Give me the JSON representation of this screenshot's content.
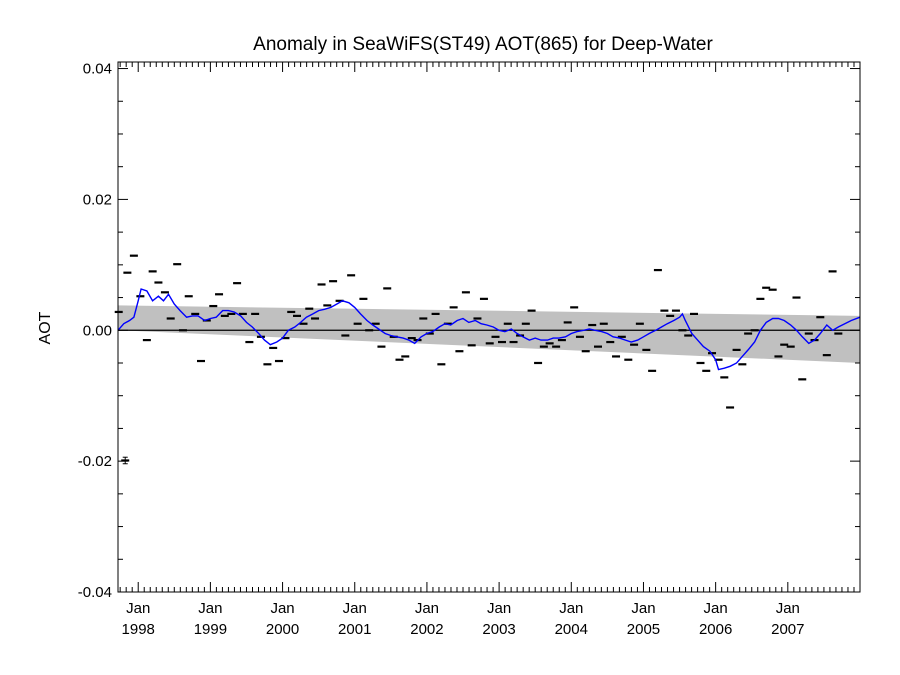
{
  "chart_data": {
    "type": "scatter",
    "title": "Anomaly in SeaWiFS(ST49) AOT(865) for Deep-Water",
    "ylabel": "AOT",
    "xlabel": "",
    "xlim": [
      1997.72,
      2008.0
    ],
    "ylim": [
      -0.04,
      0.041
    ],
    "y_ticks": [
      {
        "value": 0.04,
        "label": "0.04"
      },
      {
        "value": 0.02,
        "label": "0.02"
      },
      {
        "value": 0.0,
        "label": "0.00"
      },
      {
        "value": -0.02,
        "label": "-0.02"
      },
      {
        "value": -0.04,
        "label": "-0.04"
      }
    ],
    "x_ticks": [
      {
        "value": 1998.0,
        "month": "Jan",
        "year": "1998"
      },
      {
        "value": 1999.0,
        "month": "Jan",
        "year": "1999"
      },
      {
        "value": 2000.0,
        "month": "Jan",
        "year": "2000"
      },
      {
        "value": 2001.0,
        "month": "Jan",
        "year": "2001"
      },
      {
        "value": 2002.0,
        "month": "Jan",
        "year": "2002"
      },
      {
        "value": 2003.0,
        "month": "Jan",
        "year": "2003"
      },
      {
        "value": 2004.0,
        "month": "Jan",
        "year": "2004"
      },
      {
        "value": 2005.0,
        "month": "Jan",
        "year": "2005"
      },
      {
        "value": 2006.0,
        "month": "Jan",
        "year": "2006"
      },
      {
        "value": 2007.0,
        "month": "Jan",
        "year": "2007"
      }
    ],
    "zero_line": 0.0,
    "trend_band": {
      "upper": [
        [
          1997.72,
          0.0038
        ],
        [
          2008.0,
          0.0022
        ]
      ],
      "lower": [
        [
          1997.72,
          0.0
        ],
        [
          2008.0,
          -0.005
        ]
      ],
      "color": "#c0c0c0"
    },
    "error_bar_sample": {
      "x": 1997.82,
      "y": -0.0199,
      "err": 0.0005
    },
    "monthly_anomalies": {
      "color": "#000000",
      "points": [
        [
          1997.73,
          0.0028
        ],
        [
          1997.85,
          0.0088
        ],
        [
          1997.94,
          0.0114
        ],
        [
          1998.03,
          0.0052
        ],
        [
          1998.12,
          -0.0015
        ],
        [
          1998.2,
          0.009
        ],
        [
          1998.28,
          0.0073
        ],
        [
          1998.37,
          0.0058
        ],
        [
          1998.45,
          0.0018
        ],
        [
          1998.54,
          0.0101
        ],
        [
          1998.62,
          0.0
        ],
        [
          1998.7,
          0.0052
        ],
        [
          1998.79,
          0.0025
        ],
        [
          1998.87,
          -0.0047
        ],
        [
          1998.95,
          0.0015
        ],
        [
          1999.04,
          0.0037
        ],
        [
          1999.12,
          0.0055
        ],
        [
          1999.2,
          0.0022
        ],
        [
          1999.29,
          0.0025
        ],
        [
          1999.37,
          0.0072
        ],
        [
          1999.45,
          0.0025
        ],
        [
          1999.54,
          -0.0018
        ],
        [
          1999.62,
          0.0025
        ],
        [
          1999.7,
          -0.001
        ],
        [
          1999.79,
          -0.0052
        ],
        [
          1999.87,
          -0.0027
        ],
        [
          1999.95,
          -0.0047
        ],
        [
          2000.04,
          -0.0012
        ],
        [
          2000.12,
          0.0028
        ],
        [
          2000.2,
          0.0022
        ],
        [
          2000.29,
          0.001
        ],
        [
          2000.37,
          0.0033
        ],
        [
          2000.45,
          0.0018
        ],
        [
          2000.54,
          0.007
        ],
        [
          2000.62,
          0.0038
        ],
        [
          2000.7,
          0.0075
        ],
        [
          2000.79,
          0.0045
        ],
        [
          2000.87,
          -0.0008
        ],
        [
          2000.95,
          0.0084
        ],
        [
          2001.04,
          0.001
        ],
        [
          2001.12,
          0.0048
        ],
        [
          2001.2,
          0.0
        ],
        [
          2001.29,
          0.001
        ],
        [
          2001.37,
          -0.0025
        ],
        [
          2001.45,
          0.0064
        ],
        [
          2001.54,
          -0.001
        ],
        [
          2001.62,
          -0.0045
        ],
        [
          2001.7,
          -0.004
        ],
        [
          2001.79,
          -0.0012
        ],
        [
          2001.87,
          -0.0015
        ],
        [
          2001.95,
          0.0018
        ],
        [
          2002.04,
          -0.0005
        ],
        [
          2002.12,
          0.0025
        ],
        [
          2002.2,
          -0.0052
        ],
        [
          2002.29,
          0.001
        ],
        [
          2002.37,
          0.0035
        ],
        [
          2002.45,
          -0.0032
        ],
        [
          2002.54,
          0.0058
        ],
        [
          2002.62,
          -0.0023
        ],
        [
          2002.7,
          0.0018
        ],
        [
          2002.79,
          0.0048
        ],
        [
          2002.87,
          -0.002
        ],
        [
          2002.95,
          -0.001
        ],
        [
          2003.04,
          -0.0018
        ],
        [
          2003.12,
          0.001
        ],
        [
          2003.2,
          -0.0018
        ],
        [
          2003.29,
          -0.0008
        ],
        [
          2003.37,
          0.001
        ],
        [
          2003.45,
          0.003
        ],
        [
          2003.54,
          -0.005
        ],
        [
          2003.62,
          -0.0025
        ],
        [
          2003.7,
          -0.002
        ],
        [
          2003.79,
          -0.0025
        ],
        [
          2003.87,
          -0.0015
        ],
        [
          2003.95,
          0.0012
        ],
        [
          2004.04,
          0.0035
        ],
        [
          2004.12,
          -0.001
        ],
        [
          2004.2,
          -0.0032
        ],
        [
          2004.29,
          0.0008
        ],
        [
          2004.37,
          -0.0025
        ],
        [
          2004.45,
          0.001
        ],
        [
          2004.54,
          -0.0018
        ],
        [
          2004.62,
          -0.004
        ],
        [
          2004.7,
          -0.001
        ],
        [
          2004.79,
          -0.0045
        ],
        [
          2004.87,
          -0.0022
        ],
        [
          2004.95,
          0.001
        ],
        [
          2005.04,
          -0.003
        ],
        [
          2005.12,
          -0.0062
        ],
        [
          2005.2,
          0.0092
        ],
        [
          2005.29,
          0.003
        ],
        [
          2005.37,
          0.0022
        ],
        [
          2005.45,
          0.003
        ],
        [
          2005.54,
          0.0
        ],
        [
          2005.62,
          -0.0008
        ],
        [
          2005.7,
          0.0025
        ],
        [
          2005.79,
          -0.005
        ],
        [
          2005.87,
          -0.0062
        ],
        [
          2005.95,
          -0.0035
        ],
        [
          2006.04,
          -0.0045
        ],
        [
          2006.12,
          -0.0072
        ],
        [
          2006.2,
          -0.0118
        ],
        [
          2006.29,
          -0.003
        ],
        [
          2006.37,
          -0.0052
        ],
        [
          2006.45,
          -0.0005
        ],
        [
          2006.54,
          0.0
        ],
        [
          2006.62,
          0.0048
        ],
        [
          2006.7,
          0.0065
        ],
        [
          2006.79,
          0.0062
        ],
        [
          2006.87,
          -0.004
        ],
        [
          2006.95,
          -0.0022
        ],
        [
          2007.04,
          -0.0025
        ],
        [
          2007.12,
          0.005
        ],
        [
          2007.2,
          -0.0075
        ],
        [
          2007.29,
          -0.0005
        ],
        [
          2007.37,
          -0.0015
        ],
        [
          2007.45,
          0.002
        ],
        [
          2007.54,
          -0.0038
        ],
        [
          2007.62,
          0.009
        ],
        [
          2007.7,
          -0.0005
        ]
      ]
    },
    "running_mean": {
      "color": "#0000ff",
      "points": [
        [
          1997.72,
          0.0
        ],
        [
          1997.8,
          0.001
        ],
        [
          1997.88,
          0.0015
        ],
        [
          1997.94,
          0.002
        ],
        [
          1998.0,
          0.0045
        ],
        [
          1998.04,
          0.0063
        ],
        [
          1998.12,
          0.006
        ],
        [
          1998.2,
          0.0045
        ],
        [
          1998.28,
          0.0052
        ],
        [
          1998.35,
          0.0045
        ],
        [
          1998.42,
          0.0055
        ],
        [
          1998.5,
          0.004
        ],
        [
          1998.58,
          0.003
        ],
        [
          1998.67,
          0.002
        ],
        [
          1998.75,
          0.0022
        ],
        [
          1998.83,
          0.0022
        ],
        [
          1998.92,
          0.0015
        ],
        [
          1999.0,
          0.0018
        ],
        [
          1999.08,
          0.002
        ],
        [
          1999.17,
          0.003
        ],
        [
          1999.25,
          0.003
        ],
        [
          1999.33,
          0.0028
        ],
        [
          1999.42,
          0.0022
        ],
        [
          1999.5,
          0.0012
        ],
        [
          1999.58,
          0.0005
        ],
        [
          1999.67,
          -0.0005
        ],
        [
          1999.75,
          -0.0015
        ],
        [
          1999.83,
          -0.0022
        ],
        [
          1999.92,
          -0.0018
        ],
        [
          2000.0,
          -0.0012
        ],
        [
          2000.08,
          0.0
        ],
        [
          2000.17,
          0.0005
        ],
        [
          2000.25,
          0.0012
        ],
        [
          2000.33,
          0.002
        ],
        [
          2000.42,
          0.0025
        ],
        [
          2000.5,
          0.003
        ],
        [
          2000.58,
          0.0032
        ],
        [
          2000.67,
          0.0035
        ],
        [
          2000.75,
          0.004
        ],
        [
          2000.83,
          0.0045
        ],
        [
          2000.92,
          0.0042
        ],
        [
          2001.0,
          0.0035
        ],
        [
          2001.08,
          0.0025
        ],
        [
          2001.17,
          0.0015
        ],
        [
          2001.25,
          0.0008
        ],
        [
          2001.33,
          0.0002
        ],
        [
          2001.42,
          -0.0005
        ],
        [
          2001.5,
          -0.0008
        ],
        [
          2001.58,
          -0.001
        ],
        [
          2001.67,
          -0.0012
        ],
        [
          2001.75,
          -0.0015
        ],
        [
          2001.83,
          -0.002
        ],
        [
          2001.92,
          -0.001
        ],
        [
          2002.0,
          -0.0005
        ],
        [
          2002.08,
          -0.0002
        ],
        [
          2002.17,
          0.0005
        ],
        [
          2002.25,
          0.001
        ],
        [
          2002.33,
          0.0008
        ],
        [
          2002.42,
          0.0015
        ],
        [
          2002.5,
          0.0018
        ],
        [
          2002.58,
          0.0012
        ],
        [
          2002.67,
          0.0015
        ],
        [
          2002.75,
          0.001
        ],
        [
          2002.83,
          0.0008
        ],
        [
          2002.92,
          0.0005
        ],
        [
          2003.0,
          0.0
        ],
        [
          2003.08,
          -0.0002
        ],
        [
          2003.17,
          0.0002
        ],
        [
          2003.25,
          -0.0005
        ],
        [
          2003.33,
          -0.001
        ],
        [
          2003.42,
          -0.0015
        ],
        [
          2003.5,
          -0.0012
        ],
        [
          2003.58,
          -0.0015
        ],
        [
          2003.67,
          -0.0015
        ],
        [
          2003.75,
          -0.0012
        ],
        [
          2003.83,
          -0.0012
        ],
        [
          2003.92,
          -0.001
        ],
        [
          2004.0,
          -0.0005
        ],
        [
          2004.08,
          -0.0002
        ],
        [
          2004.17,
          0.0
        ],
        [
          2004.25,
          0.0002
        ],
        [
          2004.33,
          0.0
        ],
        [
          2004.42,
          -0.0002
        ],
        [
          2004.5,
          -0.0005
        ],
        [
          2004.58,
          -0.001
        ],
        [
          2004.67,
          -0.0012
        ],
        [
          2004.75,
          -0.0015
        ],
        [
          2004.83,
          -0.0018
        ],
        [
          2004.92,
          -0.0015
        ],
        [
          2005.0,
          -0.001
        ],
        [
          2005.08,
          -0.0005
        ],
        [
          2005.17,
          0.0
        ],
        [
          2005.25,
          0.0005
        ],
        [
          2005.33,
          0.001
        ],
        [
          2005.42,
          0.0015
        ],
        [
          2005.5,
          0.002
        ],
        [
          2005.54,
          0.0025
        ],
        [
          2005.58,
          0.0015
        ],
        [
          2005.67,
          -0.0005
        ],
        [
          2005.75,
          -0.0015
        ],
        [
          2005.83,
          -0.0025
        ],
        [
          2005.92,
          -0.0032
        ],
        [
          2006.0,
          -0.0045
        ],
        [
          2006.04,
          -0.006
        ],
        [
          2006.12,
          -0.0058
        ],
        [
          2006.2,
          -0.0055
        ],
        [
          2006.29,
          -0.005
        ],
        [
          2006.37,
          -0.004
        ],
        [
          2006.45,
          -0.003
        ],
        [
          2006.54,
          -0.0018
        ],
        [
          2006.62,
          0.0
        ],
        [
          2006.7,
          0.0012
        ],
        [
          2006.79,
          0.0018
        ],
        [
          2006.87,
          0.0018
        ],
        [
          2006.95,
          0.0015
        ],
        [
          2007.04,
          0.0008
        ],
        [
          2007.12,
          0.0
        ],
        [
          2007.2,
          -0.001
        ],
        [
          2007.29,
          -0.002
        ],
        [
          2007.37,
          -0.0015
        ],
        [
          2007.45,
          -0.0005
        ],
        [
          2007.54,
          0.0008
        ],
        [
          2007.62,
          0.0
        ],
        [
          2007.7,
          0.0005
        ],
        [
          2007.79,
          0.001
        ],
        [
          2007.88,
          0.0015
        ],
        [
          2008.0,
          0.002
        ]
      ]
    }
  }
}
